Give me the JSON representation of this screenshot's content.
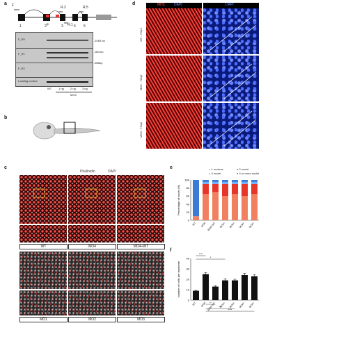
{
  "panels": {
    "a": {
      "label": "a",
      "primers": [
        "F",
        "R.2",
        "R.5",
        "R.1",
        "F"
      ],
      "exons": [
        "1",
        "2",
        "3",
        "4",
        "5"
      ],
      "gel_rows": [
        "F_R5",
        "F_R1",
        "F_R2",
        "Loading control"
      ],
      "sizes": [
        "-1064 bp",
        "-363 bp",
        "-896bp"
      ],
      "lanes": [
        "WT",
        "1 ng",
        "2 ng",
        "3 ng"
      ],
      "group": "MO4"
    },
    "b": {
      "label": "b"
    },
    "c": {
      "label": "c",
      "channels": [
        "Phalloidin",
        "DAPI"
      ],
      "top_captions": [
        "WT",
        "MO4",
        "MO4+WT"
      ],
      "bottom_captions": [
        "MO1",
        "MO2",
        "MO3"
      ]
    },
    "d": {
      "label": "d",
      "channels": [
        "MHC",
        "DAPI",
        "DAPI"
      ],
      "rows": [
        "WT - 72hpf",
        "MO2 - 72hpf",
        "MO3 - 72hpf"
      ]
    },
    "e": {
      "label": "e",
      "legend": [
        "1 nucleus",
        "2 nuclei",
        "3 nuclei",
        "4 or more nuclei"
      ],
      "ylabel": "Percentage of nuclei (%)",
      "yticks": [
        "0",
        "20",
        "40",
        "60",
        "80",
        "100"
      ]
    },
    "f": {
      "label": "f",
      "ylabel": "Number of cells per myotome",
      "yticks": [
        "0",
        "10",
        "20",
        "30",
        "40"
      ],
      "sig": [
        "****",
        "*",
        "**",
        "***",
        "****"
      ]
    }
  },
  "chart_data": [
    {
      "type": "bar",
      "stacked": true,
      "categories": [
        "WT",
        "MO4",
        "MO4+WT",
        "MO4+",
        "MO4+",
        "MO4+",
        "MO4+"
      ],
      "series": [
        {
          "name": "1 nucleus",
          "values": [
            10,
            65,
            70,
            60,
            65,
            60,
            65
          ]
        },
        {
          "name": "2 nuclei",
          "values": [
            0,
            25,
            20,
            30,
            25,
            30,
            25
          ]
        },
        {
          "name": "3 nuclei",
          "values": [
            0,
            5,
            5,
            5,
            5,
            5,
            5
          ]
        },
        {
          "name": "4 or more nuclei",
          "values": [
            90,
            5,
            5,
            5,
            5,
            5,
            5
          ]
        }
      ],
      "ylabel": "Percentage of nuclei (%)",
      "ylim": [
        0,
        100
      ]
    },
    {
      "type": "bar",
      "categories": [
        "WT",
        "MO4",
        "MO4+WT",
        "MO4+",
        "MO4+",
        "MO4+",
        "MO4+"
      ],
      "values": [
        9,
        25,
        13,
        19,
        19,
        24,
        23
      ],
      "errors": [
        0.5,
        1.5,
        1,
        1.5,
        1,
        1.5,
        1.5
      ],
      "ylabel": "Number of cells per myotome",
      "ylim": [
        0,
        40
      ]
    }
  ],
  "colors": {
    "red": "#e8352a",
    "salmon": "#f08060",
    "blue": "#3a7bd5",
    "lightblue": "#6ab0ff"
  }
}
